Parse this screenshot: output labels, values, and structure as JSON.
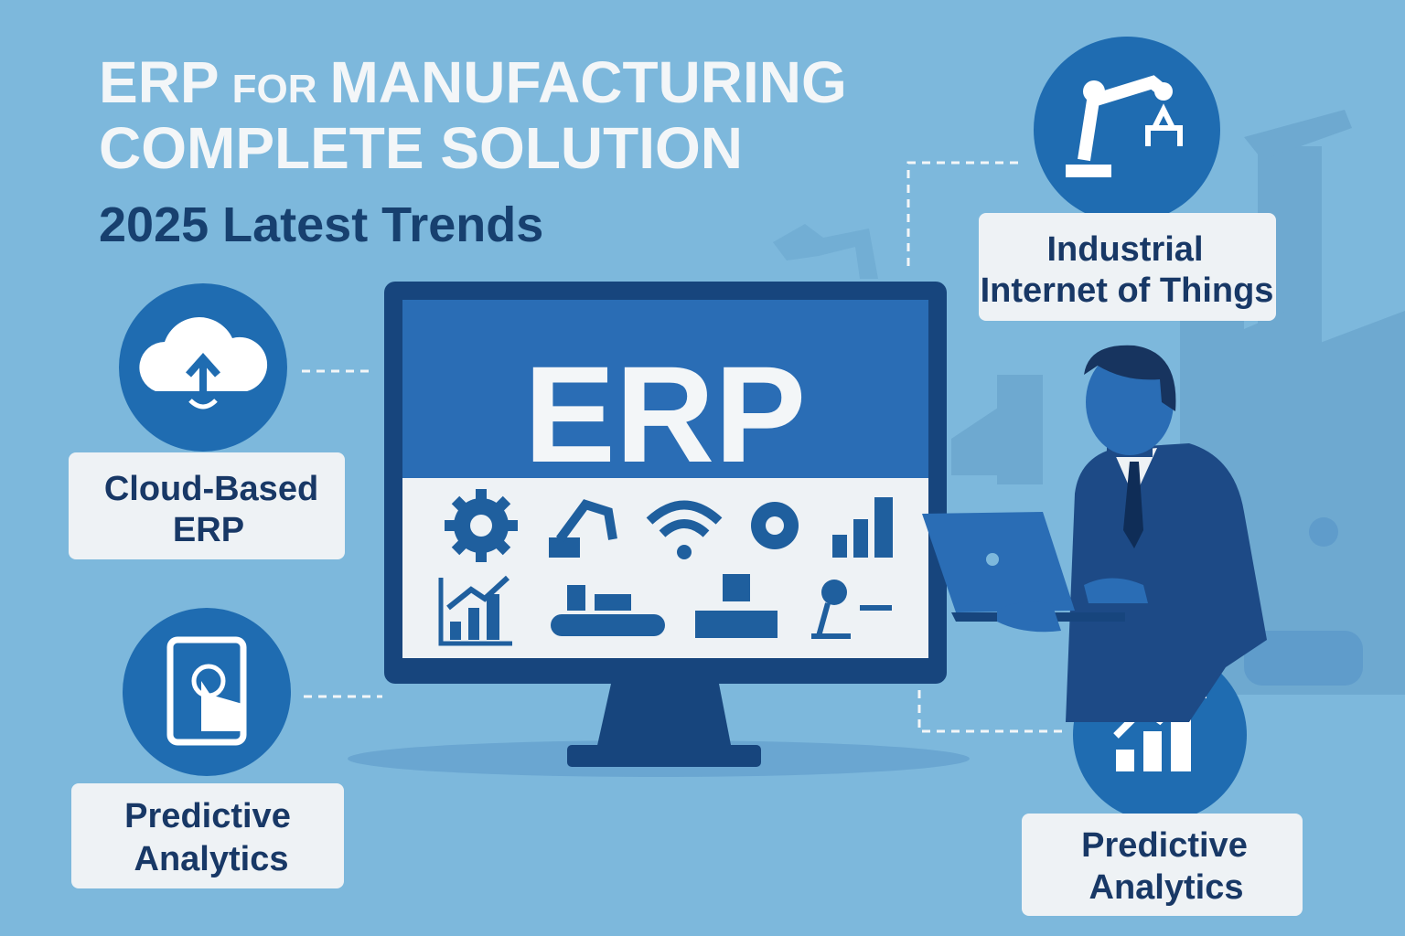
{
  "header": {
    "title_line1": [
      "ERP",
      "FOR",
      "MANUFACTURING"
    ],
    "title_line2": "COMPLETE SOLUTION",
    "subtitle": "2025 Latest Trends"
  },
  "monitor": {
    "label": "ERP"
  },
  "features": [
    {
      "lines": [
        "Cloud-Based",
        "ERP"
      ]
    },
    {
      "lines": [
        "Predictive",
        "Analytics"
      ]
    },
    {
      "lines": [
        "Industrial",
        "Internet of Things"
      ]
    },
    {
      "lines": [
        "Predictive",
        "Analytics"
      ]
    }
  ]
}
